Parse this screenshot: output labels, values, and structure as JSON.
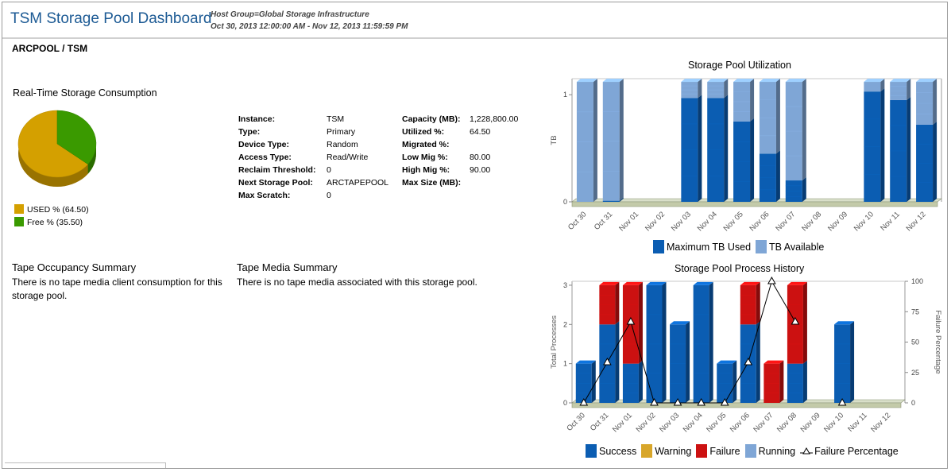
{
  "header": {
    "title": "TSM Storage Pool Dashboard",
    "host_group": "Host Group=Global Storage Infrastructure",
    "date_range": "Oct 30, 2013 12:00:00 AM - Nov 12, 2013 11:59:59 PM"
  },
  "pool_title": "ARCPOOL / TSM",
  "consumption": {
    "title": "Real-Time Storage Consumption",
    "used_label": "USED % (64.50)",
    "free_label": "Free % (35.50)",
    "used_pct": 64.5,
    "free_pct": 35.5,
    "used_color": "#d4a000",
    "free_color": "#3a9a00"
  },
  "properties": {
    "left": [
      {
        "key": "Instance:",
        "value": "TSM"
      },
      {
        "key": "Type:",
        "value": "Primary"
      },
      {
        "key": "Device Type:",
        "value": "Random"
      },
      {
        "key": "Access Type:",
        "value": "Read/Write"
      },
      {
        "key": "Reclaim Threshold:",
        "value": "0"
      },
      {
        "key": "Next Storage Pool:",
        "value": "ARCTAPEPOOL"
      },
      {
        "key": "Max Scratch:",
        "value": "0"
      }
    ],
    "right": [
      {
        "key": "Capacity (MB):",
        "value": "1,228,800.00"
      },
      {
        "key": "Utilized %:",
        "value": "64.50"
      },
      {
        "key": "Migrated %:",
        "value": ""
      },
      {
        "key": "Low Mig %:",
        "value": "80.00"
      },
      {
        "key": "High Mig %:",
        "value": "90.00"
      },
      {
        "key": "Max Size (MB):",
        "value": ""
      }
    ]
  },
  "tape_occupancy": {
    "title": "Tape Occupancy Summary",
    "text": "There is no tape media client consumption for this storage pool."
  },
  "tape_media": {
    "title": "Tape Media Summary",
    "text": "There is no tape media associated with this storage pool."
  },
  "chart_data": [
    {
      "type": "bar",
      "title": "Storage Pool Utilization",
      "ylabel": "TB",
      "xlabel": "",
      "ylim": [
        0,
        1.15
      ],
      "yticks": [
        "0",
        "1"
      ],
      "categories": [
        "Oct 30",
        "Oct 31",
        "Nov 01",
        "Nov 02",
        "Nov 03",
        "Nov 04",
        "Nov 05",
        "Nov 06",
        "Nov 07",
        "Nov 08",
        "Nov 09",
        "Nov 10",
        "Nov 11",
        "Nov 12"
      ],
      "stacked": true,
      "series": [
        {
          "name": "Maximum TB Used",
          "color": "#0b5db2",
          "values": [
            0,
            0.01,
            null,
            null,
            0.97,
            0.97,
            0.75,
            0.45,
            0.2,
            null,
            null,
            1.03,
            0.95,
            0.72
          ]
        },
        {
          "name": "TB Available",
          "color": "#7fa6d6",
          "values": [
            1.12,
            1.11,
            null,
            null,
            0.15,
            0.15,
            0.37,
            0.67,
            0.92,
            null,
            null,
            0.09,
            0.17,
            0.4
          ]
        }
      ],
      "legend": "bottom"
    },
    {
      "type": "bar",
      "title": "Storage Pool Process History",
      "ylabel": "Total Processes",
      "y2label": "Failure Percentage",
      "ylim": [
        0,
        3.1
      ],
      "yticks": [
        "0",
        "1",
        "2",
        "3"
      ],
      "y2ticks": [
        "0",
        "25",
        "50",
        "75",
        "100"
      ],
      "categories": [
        "Oct 30",
        "Oct 31",
        "Nov 01",
        "Nov 02",
        "Nov 03",
        "Nov 04",
        "Nov 05",
        "Nov 06",
        "Nov 07",
        "Nov 08",
        "Nov 09",
        "Nov 10",
        "Nov 11",
        "Nov 12"
      ],
      "stacked": true,
      "series": [
        {
          "name": "Success",
          "color": "#0b5db2",
          "values": [
            1,
            2,
            1,
            3,
            2,
            3,
            1,
            2,
            0,
            1,
            0,
            2,
            0,
            0
          ]
        },
        {
          "name": "Warning",
          "color": "#d8a62a",
          "values": [
            0,
            0,
            0,
            0,
            0,
            0,
            0,
            0,
            0,
            0,
            0,
            0,
            0,
            0
          ]
        },
        {
          "name": "Failure",
          "color": "#cc1111",
          "values": [
            0,
            1,
            2,
            0,
            0,
            0,
            0,
            1,
            1,
            2,
            0,
            0,
            0,
            0
          ]
        },
        {
          "name": "Running",
          "color": "#7fa6d6",
          "values": [
            0,
            0,
            0,
            0,
            0,
            0,
            0,
            0,
            0,
            0,
            0,
            0,
            0,
            0
          ]
        }
      ],
      "line": {
        "name": "Failure Percentage",
        "values": [
          0,
          33.3,
          66.7,
          0,
          0,
          0,
          0,
          33.3,
          100,
          66.7,
          null,
          0,
          null,
          null
        ]
      },
      "legend": "bottom"
    }
  ]
}
